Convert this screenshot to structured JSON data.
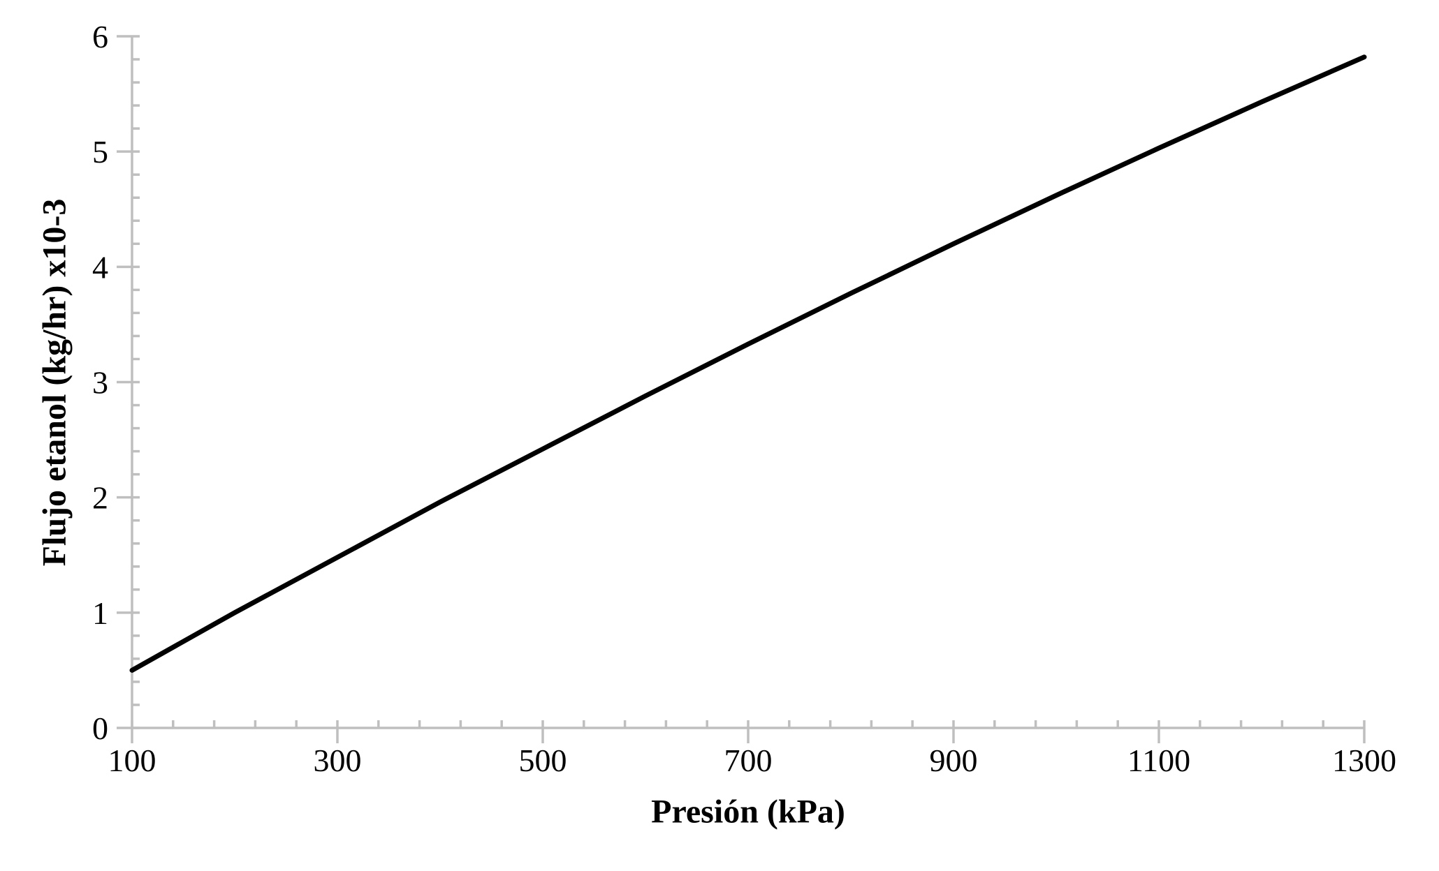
{
  "chart_data": {
    "type": "line",
    "title": "",
    "xlabel": "Presión (kPa)",
    "ylabel": "Flujo etanol (kg/hr) x10-3",
    "x": [
      100,
      200,
      300,
      400,
      500,
      600,
      700,
      800,
      900,
      1000,
      1100,
      1200,
      1300
    ],
    "values": [
      0.5,
      1.0,
      1.48,
      1.96,
      2.42,
      2.88,
      3.33,
      3.77,
      4.2,
      4.62,
      5.03,
      5.43,
      5.82
    ],
    "xlim": [
      100,
      1300
    ],
    "ylim": [
      0,
      6
    ],
    "x_major_ticks": [
      100,
      300,
      500,
      700,
      900,
      1100,
      1300
    ],
    "x_tick_labels": [
      "100",
      "300",
      "500",
      "700",
      "900",
      "1100",
      "1300"
    ],
    "x_minor_step": 40,
    "y_major_ticks": [
      0,
      1,
      2,
      3,
      4,
      5,
      6
    ],
    "y_tick_labels": [
      "0",
      "1",
      "2",
      "3",
      "4",
      "5",
      "6"
    ],
    "y_minor_step": 0.2,
    "grid": false,
    "legend_position": "none",
    "line_color": "#000000",
    "axis_color": "#BFBFBF",
    "background_color": "#FFFFFF"
  }
}
